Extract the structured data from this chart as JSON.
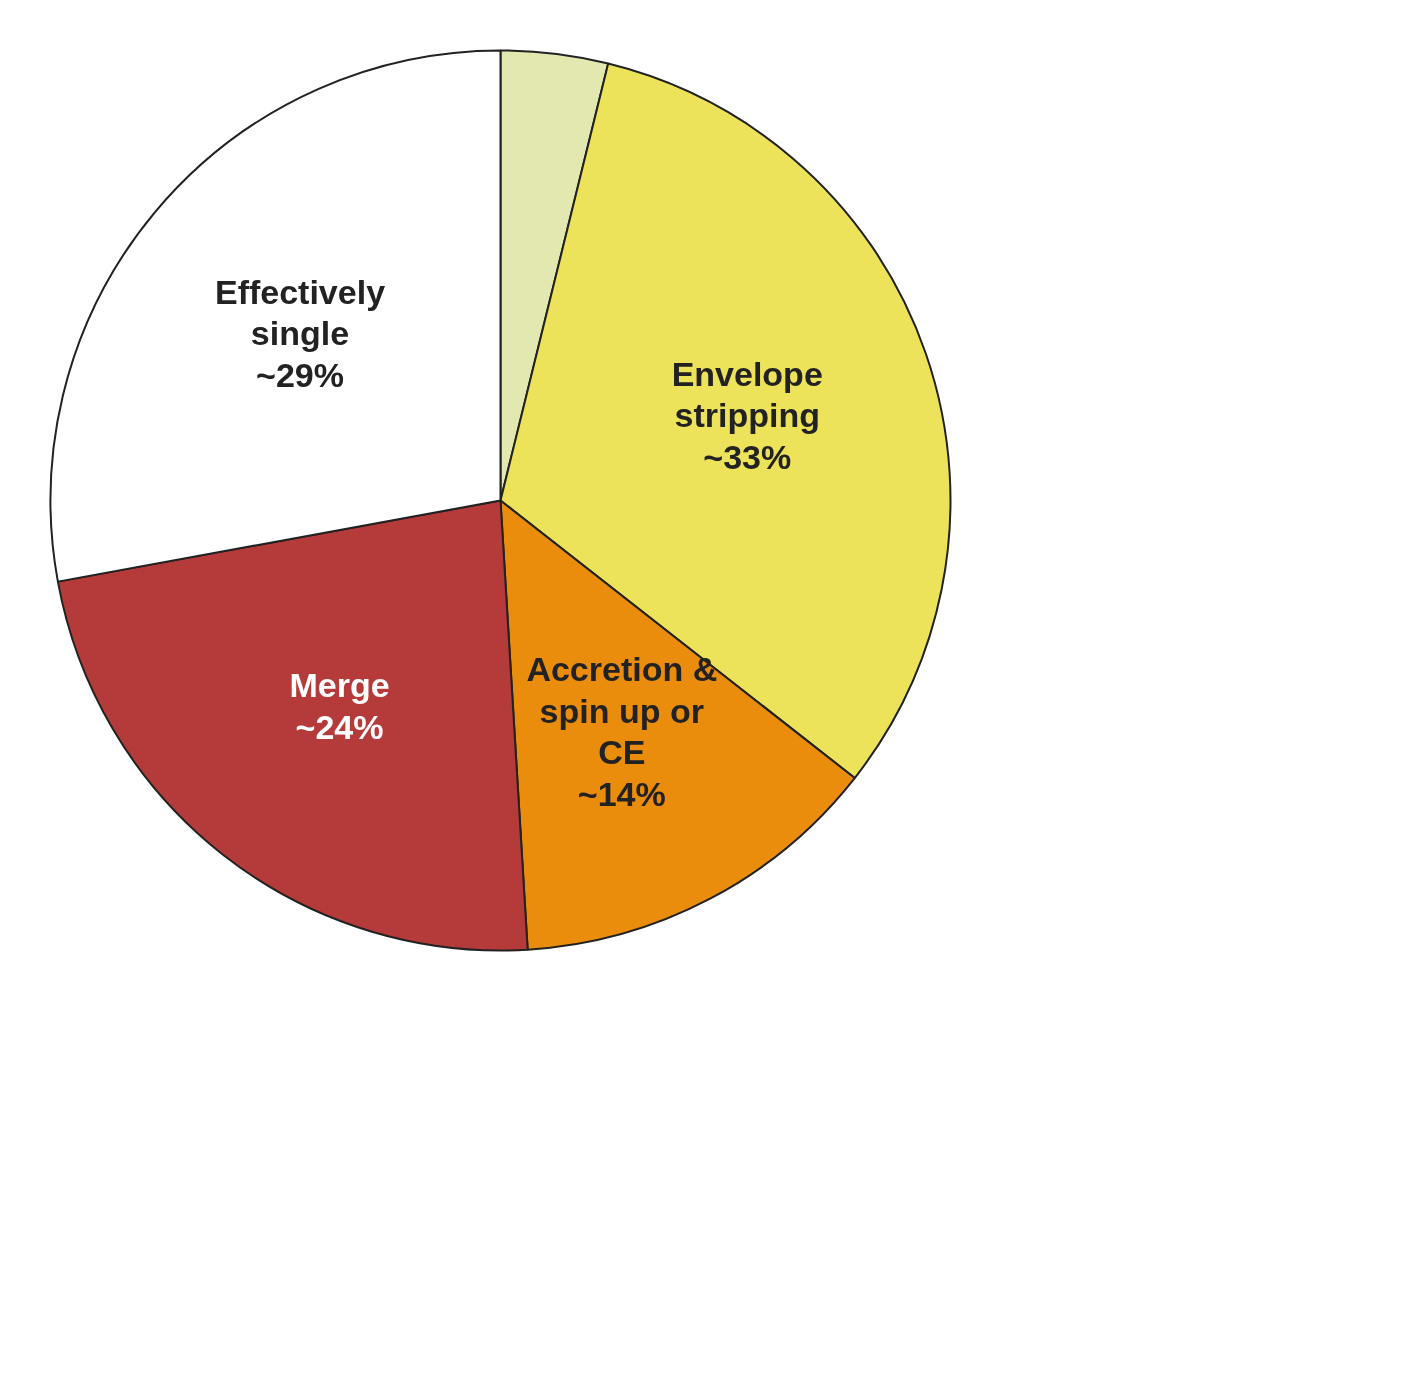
{
  "chart_data": {
    "type": "pie",
    "categories": [
      null,
      "Envelope stripping",
      "Accretion & spin up or CE",
      "Merge",
      "Effectively single"
    ],
    "values": [
      4,
      33,
      14,
      24,
      29
    ],
    "colors": [
      "#e3e8b0",
      "#ede35a",
      "#ea8c0c",
      "#b53a3a",
      "#ffffff"
    ],
    "value_labels": [
      null,
      "~33%",
      "~14%",
      "~24%",
      "~29%"
    ]
  }
}
